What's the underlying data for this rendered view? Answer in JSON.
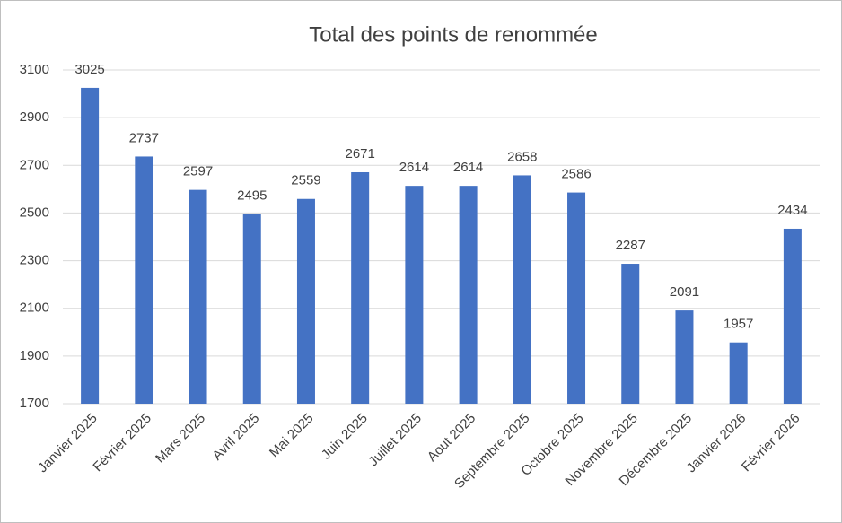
{
  "chart_data": {
    "type": "bar",
    "title": "Total des points de renommée",
    "categories": [
      "Janvier 2025",
      "Février 2025",
      "Mars 2025",
      "Avril 2025",
      "Mai 2025",
      "Juin 2025",
      "Juillet 2025",
      "Aout 2025",
      "Septembre 2025",
      "Octobre 2025",
      "Novembre 2025",
      "Décembre 2025",
      "Janvier 2026",
      "Février 2026"
    ],
    "values": [
      3025,
      2737,
      2597,
      2495,
      2559,
      2671,
      2614,
      2614,
      2658,
      2586,
      2287,
      2091,
      1957,
      2434
    ],
    "color": "#4472c4",
    "ylim": [
      1700,
      3100
    ],
    "yticks": [
      1700,
      1900,
      2100,
      2300,
      2500,
      2700,
      2900,
      3100
    ],
    "grid": true
  }
}
